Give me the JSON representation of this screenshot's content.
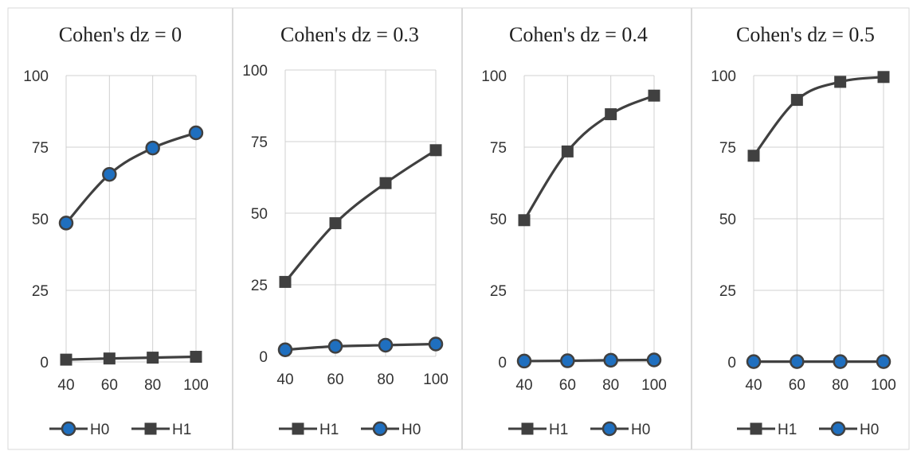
{
  "colors": {
    "line": "#404040",
    "circle_fill": "#1f6fbf",
    "square_fill": "#404040",
    "grid": "#d0d0d0",
    "panel_border": "#d9d9d9"
  },
  "chart_data": [
    {
      "type": "line",
      "title": "Cohen's dz = 0",
      "x": [
        40,
        60,
        80,
        100
      ],
      "ylim": [
        0,
        100
      ],
      "yticks": [
        "0",
        "25",
        "50",
        "75",
        "100"
      ],
      "xticks": [
        "40",
        "60",
        "80",
        "100"
      ],
      "legend": [
        "H0",
        "H1"
      ],
      "legend_position": "bottom",
      "grid": true,
      "series": [
        {
          "name": "H0",
          "marker": "circle",
          "values": [
            48.5,
            65.5,
            74.7,
            80.0
          ]
        },
        {
          "name": "H1",
          "marker": "square",
          "values": [
            0.8,
            1.2,
            1.5,
            1.8
          ]
        }
      ]
    },
    {
      "type": "line",
      "title": "Cohen's dz = 0.3",
      "x": [
        40,
        60,
        80,
        100
      ],
      "ylim": [
        0,
        100
      ],
      "yticks": [
        "0",
        "25",
        "50",
        "75",
        "100"
      ],
      "xticks": [
        "40",
        "60",
        "80",
        "100"
      ],
      "legend": [
        "H1",
        "H0"
      ],
      "legend_position": "bottom",
      "grid": true,
      "series": [
        {
          "name": "H1",
          "marker": "square",
          "values": [
            26.0,
            46.5,
            60.5,
            72.0
          ]
        },
        {
          "name": "H0",
          "marker": "circle",
          "values": [
            2.3,
            3.5,
            3.9,
            4.3
          ]
        }
      ]
    },
    {
      "type": "line",
      "title": "Cohen's dz = 0.4",
      "x": [
        40,
        60,
        80,
        100
      ],
      "ylim": [
        0,
        100
      ],
      "yticks": [
        "0",
        "25",
        "50",
        "75",
        "100"
      ],
      "xticks": [
        "40",
        "60",
        "80",
        "100"
      ],
      "legend": [
        "H1",
        "H0"
      ],
      "legend_position": "bottom",
      "grid": true,
      "series": [
        {
          "name": "H1",
          "marker": "square",
          "values": [
            49.5,
            73.5,
            86.5,
            93.0
          ]
        },
        {
          "name": "H0",
          "marker": "circle",
          "values": [
            0.3,
            0.4,
            0.6,
            0.7
          ]
        }
      ]
    },
    {
      "type": "line",
      "title": "Cohen's dz = 0.5",
      "x": [
        40,
        60,
        80,
        100
      ],
      "ylim": [
        0,
        100
      ],
      "yticks": [
        "0",
        "25",
        "50",
        "75",
        "100"
      ],
      "xticks": [
        "40",
        "60",
        "80",
        "100"
      ],
      "legend": [
        "H1",
        "H0"
      ],
      "legend_position": "bottom",
      "grid": true,
      "series": [
        {
          "name": "H1",
          "marker": "square",
          "values": [
            72.0,
            91.5,
            97.8,
            99.5
          ]
        },
        {
          "name": "H0",
          "marker": "circle",
          "values": [
            0.1,
            0.1,
            0.1,
            0.1
          ]
        }
      ]
    }
  ]
}
